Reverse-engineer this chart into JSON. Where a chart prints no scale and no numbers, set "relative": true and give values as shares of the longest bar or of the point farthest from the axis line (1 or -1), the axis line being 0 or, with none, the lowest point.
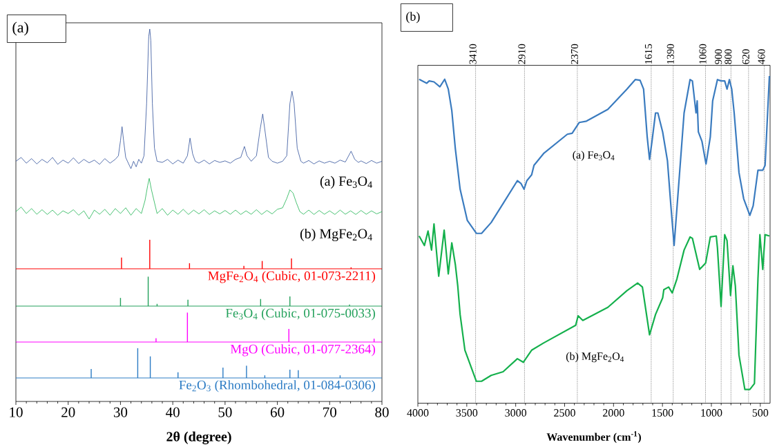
{
  "chart_data": [
    {
      "type": "line",
      "title": "(a)",
      "relative": true,
      "xlim": [
        10,
        80
      ],
      "series": [
        {
          "color": "#2f4f99",
          "x": [
            10,
            11,
            12,
            13,
            14,
            15,
            16,
            17,
            18,
            19,
            20,
            21,
            22,
            23,
            24,
            25,
            26,
            27,
            28,
            29,
            29.6,
            30.0,
            30.3,
            30.6,
            31.0,
            31.5,
            32.0,
            32.5,
            33.0,
            33.5,
            34.0,
            34.5,
            35.0,
            35.4,
            35.6,
            35.8,
            36.1,
            36.5,
            37.0,
            38,
            39,
            40,
            41,
            42,
            42.8,
            43.3,
            43.8,
            44.3,
            45,
            46,
            47,
            48,
            49,
            50,
            51,
            52,
            53.0,
            53.7,
            54.2,
            55,
            56.0,
            56.7,
            57.2,
            57.7,
            58.3,
            59,
            60,
            61,
            61.8,
            62.4,
            62.8,
            63.2,
            63.8,
            64.5,
            65,
            66,
            67,
            68,
            69,
            70,
            71,
            72,
            73,
            74.1,
            74.8,
            75.5,
            76,
            77,
            78,
            79,
            80
          ],
          "values": [
            0.304,
            0.324,
            0.294,
            0.318,
            0.29,
            0.314,
            0.296,
            0.324,
            0.288,
            0.31,
            0.294,
            0.322,
            0.292,
            0.314,
            0.296,
            0.31,
            0.288,
            0.318,
            0.294,
            0.314,
            0.333,
            0.412,
            0.486,
            0.412,
            0.324,
            0.294,
            0.265,
            0.304,
            0.275,
            0.314,
            0.294,
            0.333,
            0.608,
            0.961,
            1.0,
            0.941,
            0.608,
            0.373,
            0.304,
            0.298,
            0.314,
            0.29,
            0.31,
            0.294,
            0.333,
            0.426,
            0.343,
            0.304,
            0.294,
            0.31,
            0.29,
            0.308,
            0.298,
            0.306,
            0.294,
            0.314,
            0.324,
            0.382,
            0.333,
            0.304,
            0.333,
            0.471,
            0.553,
            0.451,
            0.324,
            0.304,
            0.294,
            0.304,
            0.333,
            0.608,
            0.673,
            0.608,
            0.373,
            0.304,
            0.294,
            0.308,
            0.29,
            0.306,
            0.294,
            0.304,
            0.294,
            0.31,
            0.3,
            0.357,
            0.314,
            0.298,
            0.306,
            0.292,
            0.308,
            0.294,
            0.304
          ]
        },
        {
          "color": "#1db350",
          "x": [
            10,
            11,
            12,
            13,
            14,
            15,
            16,
            17,
            18,
            19,
            20,
            21,
            22,
            23,
            24,
            25,
            26,
            27,
            28,
            29,
            30,
            31,
            32,
            33,
            34,
            34.7,
            35.2,
            35.5,
            35.9,
            36.4,
            37,
            38,
            39,
            40,
            41,
            42,
            43,
            44,
            45,
            46,
            47,
            48,
            49,
            50,
            51,
            52,
            53,
            54,
            55,
            56,
            57,
            58,
            59,
            60,
            61,
            61.8,
            62.4,
            63.0,
            63.6,
            64.3,
            65,
            66,
            67,
            68,
            69,
            70,
            71,
            72,
            73,
            74,
            75,
            76,
            77,
            78,
            79,
            80
          ],
          "values": [
            0.039,
            0.063,
            0.029,
            0.055,
            0.025,
            0.049,
            0.024,
            0.047,
            0.02,
            0.043,
            0.029,
            0.049,
            0.02,
            0.043,
            0,
            0.047,
            0.025,
            0.051,
            0.02,
            0.055,
            0.029,
            0.059,
            0.02,
            0.055,
            0.029,
            0.098,
            0.176,
            0.214,
            0.157,
            0.098,
            0.029,
            0.055,
            0.02,
            0.047,
            0.025,
            0.051,
            0.024,
            0.047,
            0.027,
            0.049,
            0.024,
            0.043,
            0.027,
            0.045,
            0.025,
            0.047,
            0.024,
            0.043,
            0.025,
            0.049,
            0.024,
            0.045,
            0.027,
            0.051,
            0.059,
            0.108,
            0.153,
            0.137,
            0.088,
            0.039,
            0.025,
            0.047,
            0.024,
            0.045,
            0.025,
            0.043,
            0.024,
            0.047,
            0.025,
            0.043,
            0.024,
            0.045,
            0.025,
            0.043,
            0.027,
            0.039
          ]
        }
      ],
      "annotations": [
        "(a) Fe$_{3}$O$_{4}$",
        "(b) MgFe$_{2}$O$_{4}$"
      ]
    },
    {
      "type": "bar",
      "relative": true,
      "xlim": [
        10,
        80
      ],
      "series": [
        {
          "name": "MgFe$_{2}$O$_{4}$ (Cubic, 01-073-2211)",
          "color": "#ff0000",
          "x": [
            30.2,
            35.6,
            43.2,
            53.6,
            57.1,
            62.7,
            74.1
          ],
          "values": [
            0.385,
            1,
            0.192,
            0.103,
            0.269,
            0.359,
            0.051
          ]
        }
      ]
    },
    {
      "type": "bar",
      "relative": true,
      "xlim": [
        10,
        80
      ],
      "series": [
        {
          "name": "Fe$_{3}$O$_{4}$ (Cubic, 01-075-0033)",
          "color": "#22a05a",
          "x": [
            30.0,
            35.3,
            37.0,
            42.9,
            56.8,
            62.4,
            73.8
          ],
          "values": [
            0.278,
            1,
            0.076,
            0.215,
            0.241,
            0.329,
            0.051
          ]
        }
      ]
    },
    {
      "type": "bar",
      "relative": true,
      "xlim": [
        10,
        80
      ],
      "series": [
        {
          "name": "MgO (Cubic, 01-077-2364)",
          "color": "#ff00ff",
          "x": [
            36.8,
            42.8,
            62.2,
            78.5
          ],
          "values": [
            0.127,
            1,
            0.443,
            0.114
          ]
        }
      ]
    },
    {
      "type": "bar",
      "relative": true,
      "xlabel": "2θ (degree)",
      "xlim": [
        10,
        80
      ],
      "xticks": [
        10,
        20,
        30,
        40,
        50,
        60,
        70,
        80
      ],
      "series": [
        {
          "name": "Fe$_{2}$O$_{3}$ (Rhombohedral, 01-084-0306)",
          "color": "#2b7bc4",
          "x": [
            24.4,
            33.3,
            35.7,
            41.0,
            49.6,
            54.1,
            57.6,
            62.4,
            64.0,
            72.0
          ],
          "values": [
            0.3,
            1,
            0.725,
            0.188,
            0.35,
            0.413,
            0.088,
            0.275,
            0.263,
            0.088
          ]
        }
      ],
      "ref_lines": [
        {
          "axis": "y",
          "value": 0,
          "color": "#2b7bc4"
        }
      ]
    },
    {
      "type": "line",
      "title": "(b)",
      "xlabel": "Wavenumber (cm$^{-1}$)",
      "relative": true,
      "xlim": [
        4000,
        400
      ],
      "xticks": [
        4000,
        3500,
        3000,
        2500,
        2000,
        1500,
        1000,
        500
      ],
      "series": [
        {
          "color": "#3a7bbf",
          "x": [
            3987,
            3909,
            3884,
            3835,
            3775,
            3726,
            3689,
            3653,
            3617,
            3568,
            3495,
            3402,
            3349,
            3251,
            3129,
            2983,
            2947,
            2915,
            2886,
            2837,
            2813,
            2715,
            2472,
            2423,
            2350,
            2277,
            2058,
            1863,
            1778,
            1729,
            1693,
            1656,
            1632,
            1607,
            1571,
            1547,
            1498,
            1449,
            1412,
            1381,
            1352,
            1279,
            1218,
            1194,
            1157,
            1145,
            1133,
            1096,
            1055,
            1011,
            987,
            938,
            901,
            864,
            840,
            816,
            792,
            767,
            718,
            670,
            607,
            573,
            524,
            475,
            451,
            407
          ],
          "values": [
            0.99,
            0.978,
            0.985,
            0.982,
            0.967,
            0.99,
            0.96,
            0.894,
            0.778,
            0.654,
            0.559,
            0.519,
            0.519,
            0.552,
            0.61,
            0.68,
            0.672,
            0.654,
            0.68,
            0.698,
            0.727,
            0.763,
            0.822,
            0.825,
            0.858,
            0.862,
            0.898,
            0.96,
            0.989,
            0.987,
            0.96,
            0.814,
            0.745,
            0.8,
            0.887,
            0.887,
            0.829,
            0.741,
            0.596,
            0.482,
            0.596,
            0.887,
            0.989,
            0.985,
            0.887,
            0.924,
            0.829,
            0.8,
            0.731,
            0.814,
            0.924,
            0.989,
            0.985,
            0.985,
            0.96,
            0.989,
            0.96,
            0.887,
            0.705,
            0.625,
            0.574,
            0.603,
            0.712,
            0.712,
            0.727,
            1.0
          ]
        },
        {
          "color": "#14b04c",
          "x": [
            3987,
            3933,
            3896,
            3860,
            3835,
            3787,
            3731,
            3689,
            3653,
            3617,
            3592,
            3568,
            3519,
            3402,
            3349,
            3251,
            3129,
            2983,
            2922,
            2837,
            2715,
            2387,
            2362,
            2314,
            2058,
            1863,
            1754,
            1705,
            1632,
            1571,
            1498,
            1486,
            1437,
            1400,
            1352,
            1279,
            1218,
            1194,
            1120,
            1059,
            1011,
            950,
            938,
            901,
            864,
            840,
            804,
            780,
            755,
            718,
            658,
            607,
            560,
            524,
            504,
            475,
            451,
            407
          ],
          "values": [
            0.511,
            0.482,
            0.526,
            0.468,
            0.548,
            0.388,
            0.529,
            0.395,
            0.49,
            0.424,
            0.358,
            0.271,
            0.162,
            0.067,
            0.067,
            0.085,
            0.096,
            0.136,
            0.125,
            0.162,
            0.184,
            0.238,
            0.267,
            0.253,
            0.293,
            0.344,
            0.367,
            0.355,
            0.209,
            0.271,
            0.322,
            0.347,
            0.355,
            0.337,
            0.38,
            0.468,
            0.508,
            0.504,
            0.409,
            0.428,
            0.508,
            0.511,
            0.475,
            0.296,
            0.515,
            0.497,
            0.329,
            0.42,
            0.358,
            0.147,
            0.042,
            0.042,
            0.06,
            0.38,
            0.515,
            0.409,
            0.515,
            0.511
          ]
        }
      ],
      "ref_lines": [
        {
          "axis": "x",
          "value": 3410,
          "label": "3410",
          "color": "#000000",
          "line_style": "dotted"
        },
        {
          "axis": "x",
          "value": 2910,
          "label": "2910",
          "color": "#000000",
          "line_style": "dotted"
        },
        {
          "axis": "x",
          "value": 2370,
          "label": "2370",
          "color": "#000000",
          "line_style": "dotted"
        },
        {
          "axis": "x",
          "value": 1615,
          "label": "1615",
          "color": "#000000",
          "line_style": "dotted"
        },
        {
          "axis": "x",
          "value": 1390,
          "label": "1390",
          "color": "#000000",
          "line_style": "dotted"
        },
        {
          "axis": "x",
          "value": 1060,
          "label": "1060",
          "color": "#000000",
          "line_style": "dotted"
        },
        {
          "axis": "x",
          "value": 900,
          "label": "900",
          "color": "#000000",
          "line_style": "dotted"
        },
        {
          "axis": "x",
          "value": 800,
          "label": "800",
          "color": "#000000",
          "line_style": "dotted"
        },
        {
          "axis": "x",
          "value": 620,
          "label": "620",
          "color": "#000000",
          "line_style": "dotted"
        },
        {
          "axis": "x",
          "value": 460,
          "label": "460",
          "color": "#000000",
          "line_style": "dotted"
        }
      ],
      "annotations": [
        "(a) Fe$_{3}$O$_{4}$",
        "(b) MgFe$_{2}$O$_{4}$"
      ]
    }
  ]
}
